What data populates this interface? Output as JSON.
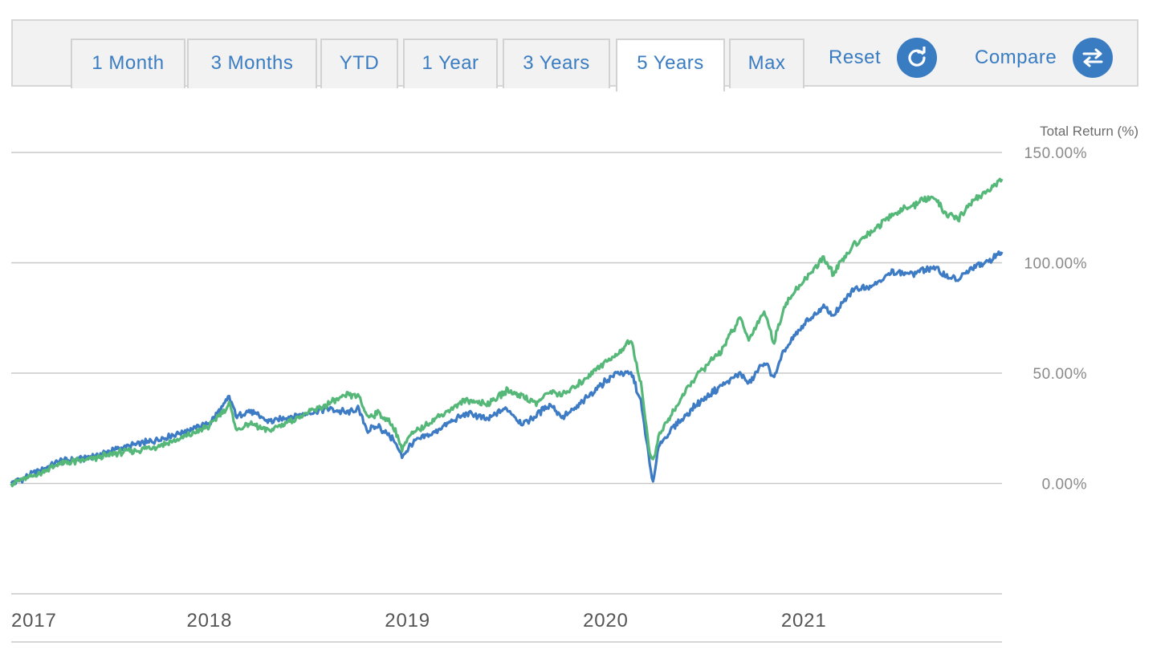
{
  "toolbar": {
    "tabs": [
      {
        "label": "1 Month",
        "active": false
      },
      {
        "label": "3 Months",
        "active": false
      },
      {
        "label": "YTD",
        "active": false
      },
      {
        "label": "1 Year",
        "active": false
      },
      {
        "label": "3 Years",
        "active": false
      },
      {
        "label": "5 Years",
        "active": true
      },
      {
        "label": "Max",
        "active": false
      }
    ],
    "reset_label": "Reset",
    "reset_icon": "refresh-icon",
    "compare_label": "Compare",
    "compare_icon": "swap-arrows-icon"
  },
  "colors": {
    "accent": "#3a7cc2",
    "series_blue": "#3d7bc4",
    "series_green": "#55b878",
    "gridline": "#c8c8c8"
  },
  "chart_data": {
    "type": "line",
    "ylabel": "Total Return (%)",
    "ylim": [
      -50,
      150
    ],
    "yticks": [
      {
        "value": 150,
        "label": "150.00%"
      },
      {
        "value": 100,
        "label": "100.00%"
      },
      {
        "value": 50,
        "label": "50.00%"
      },
      {
        "value": 0,
        "label": "0.00%"
      }
    ],
    "xlim": [
      2017.0,
      2022.0
    ],
    "xticks": [
      {
        "value": 2017.0,
        "label": "2017"
      },
      {
        "value": 2018.0,
        "label": "2018"
      },
      {
        "value": 2019.0,
        "label": "2019"
      },
      {
        "value": 2020.0,
        "label": "2020"
      },
      {
        "value": 2021.0,
        "label": "2021"
      }
    ],
    "grid": true,
    "series": [
      {
        "name": "",
        "color": "#3d7bc4",
        "points": [
          [
            2017.0,
            0
          ],
          [
            2017.1,
            4
          ],
          [
            2017.25,
            10
          ],
          [
            2017.4,
            12
          ],
          [
            2017.55,
            16
          ],
          [
            2017.7,
            19
          ],
          [
            2017.85,
            23
          ],
          [
            2018.0,
            27
          ],
          [
            2018.07,
            35
          ],
          [
            2018.1,
            39
          ],
          [
            2018.14,
            30
          ],
          [
            2018.2,
            33
          ],
          [
            2018.3,
            28
          ],
          [
            2018.45,
            31
          ],
          [
            2018.6,
            34
          ],
          [
            2018.7,
            32
          ],
          [
            2018.75,
            34
          ],
          [
            2018.8,
            24
          ],
          [
            2018.85,
            26
          ],
          [
            2018.93,
            20
          ],
          [
            2018.97,
            12
          ],
          [
            2019.02,
            18
          ],
          [
            2019.15,
            24
          ],
          [
            2019.3,
            32
          ],
          [
            2019.4,
            29
          ],
          [
            2019.5,
            34
          ],
          [
            2019.58,
            27
          ],
          [
            2019.65,
            31
          ],
          [
            2019.72,
            36
          ],
          [
            2019.78,
            30
          ],
          [
            2019.85,
            34
          ],
          [
            2019.95,
            43
          ],
          [
            2020.05,
            50
          ],
          [
            2020.13,
            50
          ],
          [
            2020.18,
            36
          ],
          [
            2020.22,
            10
          ],
          [
            2020.24,
            0
          ],
          [
            2020.27,
            18
          ],
          [
            2020.35,
            26
          ],
          [
            2020.45,
            35
          ],
          [
            2020.58,
            44
          ],
          [
            2020.68,
            50
          ],
          [
            2020.72,
            45
          ],
          [
            2020.8,
            55
          ],
          [
            2020.85,
            48
          ],
          [
            2020.9,
            60
          ],
          [
            2021.0,
            72
          ],
          [
            2021.1,
            80
          ],
          [
            2021.15,
            76
          ],
          [
            2021.25,
            88
          ],
          [
            2021.35,
            90
          ],
          [
            2021.45,
            96
          ],
          [
            2021.55,
            95
          ],
          [
            2021.65,
            98
          ],
          [
            2021.72,
            94
          ],
          [
            2021.78,
            92
          ],
          [
            2021.85,
            98
          ],
          [
            2021.92,
            100
          ],
          [
            2022.0,
            105
          ]
        ]
      },
      {
        "name": "",
        "color": "#55b878",
        "points": [
          [
            2017.0,
            0
          ],
          [
            2017.1,
            3
          ],
          [
            2017.25,
            9
          ],
          [
            2017.4,
            11
          ],
          [
            2017.55,
            14
          ],
          [
            2017.7,
            16
          ],
          [
            2017.85,
            20
          ],
          [
            2018.0,
            26
          ],
          [
            2018.07,
            33
          ],
          [
            2018.1,
            36
          ],
          [
            2018.14,
            24
          ],
          [
            2018.2,
            27
          ],
          [
            2018.3,
            24
          ],
          [
            2018.45,
            30
          ],
          [
            2018.6,
            36
          ],
          [
            2018.7,
            40
          ],
          [
            2018.75,
            40
          ],
          [
            2018.8,
            30
          ],
          [
            2018.85,
            32
          ],
          [
            2018.93,
            26
          ],
          [
            2018.97,
            16
          ],
          [
            2019.02,
            22
          ],
          [
            2019.15,
            30
          ],
          [
            2019.3,
            38
          ],
          [
            2019.4,
            36
          ],
          [
            2019.5,
            42
          ],
          [
            2019.58,
            40
          ],
          [
            2019.65,
            36
          ],
          [
            2019.72,
            42
          ],
          [
            2019.78,
            40
          ],
          [
            2019.85,
            44
          ],
          [
            2019.95,
            52
          ],
          [
            2020.05,
            58
          ],
          [
            2020.13,
            65
          ],
          [
            2020.18,
            44
          ],
          [
            2020.22,
            15
          ],
          [
            2020.24,
            10
          ],
          [
            2020.27,
            22
          ],
          [
            2020.35,
            34
          ],
          [
            2020.45,
            48
          ],
          [
            2020.58,
            60
          ],
          [
            2020.68,
            75
          ],
          [
            2020.72,
            65
          ],
          [
            2020.8,
            78
          ],
          [
            2020.85,
            64
          ],
          [
            2020.9,
            80
          ],
          [
            2021.0,
            92
          ],
          [
            2021.1,
            102
          ],
          [
            2021.15,
            95
          ],
          [
            2021.25,
            108
          ],
          [
            2021.35,
            115
          ],
          [
            2021.45,
            122
          ],
          [
            2021.55,
            126
          ],
          [
            2021.65,
            130
          ],
          [
            2021.72,
            122
          ],
          [
            2021.78,
            120
          ],
          [
            2021.85,
            128
          ],
          [
            2021.92,
            132
          ],
          [
            2022.0,
            138
          ]
        ]
      }
    ]
  }
}
